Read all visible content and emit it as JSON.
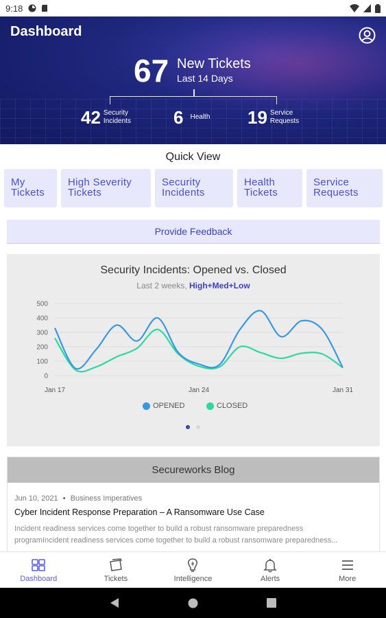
{
  "status_bar": {
    "time": "9:18"
  },
  "header": {
    "title": "Dashboard",
    "total": "67",
    "total_label": "New Tickets",
    "period": "Last 14 Days",
    "stats": [
      {
        "value": "42",
        "label_line1": "Security",
        "label_line2": "Incidents"
      },
      {
        "value": "6",
        "label_line1": "Health",
        "label_line2": ""
      },
      {
        "value": "19",
        "label_line1": "Service",
        "label_line2": "Requests"
      }
    ]
  },
  "quick_view": {
    "title": "Quick View",
    "buttons": [
      {
        "line1": "My",
        "line2": "Tickets"
      },
      {
        "line1": "High Severity",
        "line2": "Tickets"
      },
      {
        "line1": "Security",
        "line2": "Incidents"
      },
      {
        "line1": "Health",
        "line2": "Tickets"
      },
      {
        "line1": "Service",
        "line2": "Requests"
      }
    ]
  },
  "feedback_label": "Provide Feedback",
  "chart": {
    "subtitle_prefix": "Last 2 weeks,",
    "severity": "High+Med+Low",
    "colors": {
      "opened": "#3a98e3",
      "closed": "#2ed8a0"
    },
    "pager": {
      "active_color": "#3b3fc7",
      "inactive_color": "#d8d8d8"
    }
  },
  "chart_data": {
    "type": "line",
    "title": "Security Incidents: Opened vs. Closed",
    "xlabel": "",
    "ylabel": "",
    "ylim": [
      0,
      500
    ],
    "yticks": [
      0,
      100,
      200,
      300,
      400,
      500
    ],
    "xtick_labels": [
      "Jan 17",
      "Jan 24",
      "Jan 31"
    ],
    "x": [
      "Jan 17",
      "Jan 18",
      "Jan 19",
      "Jan 20",
      "Jan 21",
      "Jan 22",
      "Jan 23",
      "Jan 24",
      "Jan 25",
      "Jan 26",
      "Jan 27",
      "Jan 28",
      "Jan 29",
      "Jan 30",
      "Jan 31"
    ],
    "series": [
      {
        "name": "OPENED",
        "values": [
          330,
          50,
          180,
          350,
          240,
          400,
          160,
          80,
          75,
          320,
          450,
          270,
          380,
          320,
          55
        ]
      },
      {
        "name": "CLOSED",
        "values": [
          260,
          40,
          60,
          130,
          190,
          320,
          150,
          65,
          60,
          200,
          160,
          120,
          155,
          150,
          55
        ]
      }
    ],
    "legend_position": "bottom",
    "grid": true
  },
  "blog": {
    "header": "Secureworks Blog",
    "date": "Jun 10, 2021",
    "bullet": "•",
    "category": "Business Imperatives",
    "title": "Cyber Incident Response Preparation – A Ransomware Use Case",
    "excerpt_line1": "Incident readiness services come together to build a robust ransomware preparedness",
    "excerpt_line2": "programIncident readiness services come together to build a robust ransomware preparedness..."
  },
  "bottom_nav": [
    {
      "label": "Dashboard",
      "icon": "grid-icon"
    },
    {
      "label": "Tickets",
      "icon": "tickets-icon"
    },
    {
      "label": "Intelligence",
      "icon": "intelligence-icon"
    },
    {
      "label": "Alerts",
      "icon": "bell-icon"
    },
    {
      "label": "More",
      "icon": "menu-icon"
    }
  ]
}
